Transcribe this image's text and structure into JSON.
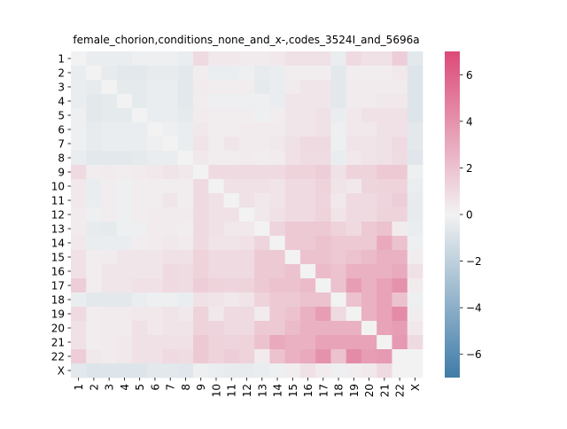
{
  "chart_data": {
    "type": "heatmap",
    "title": "female_chorion,conditions_none_and_x-,codes_3524I_and_5696a",
    "xlabel": "",
    "ylabel": "",
    "row_labels": [
      "1",
      "2",
      "3",
      "4",
      "5",
      "6",
      "7",
      "8",
      "9",
      "10",
      "11",
      "12",
      "13",
      "14",
      "15",
      "16",
      "17",
      "18",
      "19",
      "20",
      "21",
      "22",
      "X"
    ],
    "col_labels": [
      "1",
      "2",
      "3",
      "4",
      "5",
      "6",
      "7",
      "8",
      "9",
      "10",
      "11",
      "12",
      "13",
      "14",
      "15",
      "16",
      "17",
      "18",
      "19",
      "20",
      "21",
      "22",
      "X"
    ],
    "colorbar": {
      "min": -7,
      "max": 7,
      "ticks": [
        -6,
        -4,
        -2,
        0,
        2,
        4,
        6
      ],
      "tick_labels": [
        "−6",
        "−4",
        "−2",
        "0",
        "2",
        "4",
        "6"
      ],
      "colors": {
        "negative": "#3f7ca8",
        "center": "#f2f2f2",
        "positive": "#dc4a78"
      }
    },
    "values": [
      [
        0,
        -0.3,
        -0.3,
        -0.3,
        -0.2,
        -0.2,
        -0.2,
        -0.3,
        1.0,
        0.4,
        0.4,
        0.3,
        0.3,
        0.4,
        0.7,
        0.7,
        0.7,
        -0.3,
        1.0,
        0.7,
        0.7,
        1.5,
        -0.6
      ],
      [
        -0.3,
        0,
        -0.4,
        -0.6,
        -0.6,
        -0.4,
        -0.4,
        -0.6,
        0.2,
        -0.3,
        -0.3,
        -0.2,
        -0.4,
        -0.3,
        0.2,
        0.2,
        0.2,
        -0.6,
        0.2,
        0.2,
        0.2,
        0.4,
        -0.8
      ],
      [
        -0.3,
        -0.4,
        0,
        -0.5,
        -0.5,
        -0.3,
        -0.3,
        -0.6,
        0.3,
        0.2,
        0.2,
        0.2,
        -0.5,
        -0.3,
        0.3,
        0.5,
        0.5,
        -0.6,
        0.3,
        0.3,
        0.3,
        0.3,
        -0.8
      ],
      [
        -0.3,
        -0.6,
        -0.5,
        0,
        -0.5,
        -0.3,
        -0.3,
        -0.6,
        0.2,
        -0.2,
        -0.2,
        -0.2,
        -0.2,
        -0.3,
        0.5,
        0.5,
        0.5,
        -0.6,
        0.3,
        0.3,
        0.4,
        0.4,
        -0.8
      ],
      [
        -0.2,
        -0.6,
        -0.5,
        -0.5,
        0,
        -0.3,
        -0.3,
        -0.5,
        0.3,
        0.2,
        0.2,
        0.2,
        -0.2,
        0.2,
        0.5,
        0.5,
        0.7,
        -0.3,
        0.4,
        0.7,
        0.7,
        0.7,
        -0.8
      ],
      [
        -0.2,
        -0.4,
        -0.3,
        -0.3,
        -0.3,
        0,
        -0.2,
        -0.3,
        0.4,
        0.2,
        0.2,
        0.3,
        0.3,
        0.3,
        0.5,
        0.5,
        0.7,
        -0.2,
        0.4,
        0.4,
        0.7,
        0.7,
        -0.6
      ],
      [
        -0.2,
        -0.4,
        -0.3,
        -0.3,
        -0.3,
        -0.2,
        0,
        -0.3,
        0.6,
        0.2,
        0.5,
        0.3,
        0.3,
        0.4,
        0.7,
        1.0,
        1.0,
        -0.2,
        0.6,
        0.6,
        0.7,
        1.0,
        -0.6
      ],
      [
        -0.3,
        -0.6,
        -0.6,
        -0.6,
        -0.5,
        -0.3,
        -0.3,
        0,
        0.4,
        0.2,
        0.2,
        0.3,
        0.2,
        0.3,
        0.7,
        0.9,
        0.9,
        -0.3,
        0.4,
        0.6,
        0.7,
        0.9,
        -0.7
      ],
      [
        1.0,
        0.2,
        0.3,
        0.2,
        0.3,
        0.4,
        0.6,
        0.4,
        0,
        1.0,
        1.0,
        1.0,
        1.0,
        1.0,
        1.3,
        1.3,
        1.5,
        0.7,
        1.3,
        1.3,
        1.7,
        1.7,
        -0.2
      ],
      [
        0.4,
        -0.3,
        0.2,
        -0.2,
        0.2,
        0.2,
        0.2,
        0.2,
        1.0,
        0,
        0.7,
        0.7,
        0.7,
        0.6,
        1.0,
        1.0,
        1.3,
        0.6,
        0.4,
        1.2,
        1.3,
        1.3,
        -0.3
      ],
      [
        0.4,
        -0.3,
        0.2,
        -0.2,
        0.2,
        0.2,
        0.5,
        0.2,
        1.0,
        0.7,
        0,
        0.7,
        0.4,
        0.6,
        1.0,
        1.0,
        1.2,
        0.4,
        1.0,
        1.0,
        1.2,
        1.5,
        -0.4
      ],
      [
        0.3,
        -0.2,
        0.2,
        -0.2,
        0.2,
        0.3,
        0.3,
        0.3,
        1.0,
        0.7,
        0.7,
        0,
        0.4,
        0.7,
        1.0,
        1.0,
        1.3,
        0.6,
        1.0,
        1.0,
        1.3,
        1.3,
        -0.4
      ],
      [
        0.3,
        -0.4,
        -0.5,
        -0.2,
        -0.2,
        0.3,
        0.3,
        0.2,
        1.0,
        0.7,
        0.4,
        0.4,
        0,
        1.2,
        1.7,
        1.7,
        1.7,
        1.3,
        1.0,
        1.7,
        2.0,
        0.3,
        -0.3
      ],
      [
        0.4,
        -0.3,
        -0.3,
        -0.3,
        0.2,
        0.3,
        0.4,
        0.3,
        1.0,
        0.6,
        0.6,
        0.7,
        1.2,
        0,
        1.7,
        1.7,
        2.0,
        1.7,
        1.7,
        1.7,
        3.0,
        2.0,
        -0.2
      ],
      [
        0.7,
        0.2,
        0.3,
        0.5,
        0.5,
        0.5,
        0.7,
        0.7,
        1.3,
        1.0,
        1.0,
        1.0,
        1.7,
        1.7,
        0,
        2.0,
        2.0,
        1.7,
        2.0,
        2.3,
        2.7,
        2.7,
        0.2
      ],
      [
        0.7,
        0.2,
        0.5,
        0.5,
        0.5,
        0.5,
        1.0,
        0.9,
        1.3,
        1.0,
        1.0,
        1.0,
        1.7,
        1.7,
        2.0,
        0,
        2.3,
        2.0,
        2.7,
        2.7,
        2.7,
        3.0,
        0.7
      ],
      [
        1.5,
        0.2,
        0.5,
        0.5,
        0.7,
        0.7,
        1.0,
        0.9,
        1.5,
        1.3,
        1.2,
        1.3,
        1.7,
        2.0,
        2.0,
        2.3,
        0,
        2.0,
        3.5,
        2.7,
        3.3,
        4.0,
        0.3
      ],
      [
        -0.3,
        -0.6,
        -0.6,
        -0.6,
        -0.3,
        -0.2,
        -0.2,
        -0.3,
        0.7,
        0.6,
        0.4,
        0.6,
        1.3,
        1.7,
        1.7,
        2.0,
        2.0,
        0,
        2.0,
        2.7,
        3.3,
        2.0,
        -0.2
      ],
      [
        1.0,
        0.2,
        0.3,
        0.3,
        0.4,
        0.4,
        0.6,
        0.4,
        1.3,
        0.4,
        1.0,
        1.0,
        0.3,
        1.7,
        2.0,
        2.7,
        3.5,
        1.0,
        0,
        2.7,
        3.3,
        4.3,
        0.2
      ],
      [
        0.7,
        0.2,
        0.3,
        0.3,
        0.7,
        0.4,
        0.6,
        0.6,
        1.3,
        1.2,
        1.0,
        1.0,
        1.7,
        1.7,
        2.3,
        2.7,
        2.7,
        2.7,
        2.7,
        0,
        3.3,
        3.5,
        0.4
      ],
      [
        0.7,
        0.2,
        0.3,
        0.4,
        0.7,
        0.7,
        0.7,
        0.7,
        1.7,
        1.3,
        1.2,
        1.3,
        2.0,
        3.0,
        2.7,
        2.7,
        3.3,
        3.3,
        3.3,
        3.3,
        0,
        3.7,
        1.0
      ],
      [
        1.5,
        0.4,
        0.3,
        0.4,
        0.7,
        0.7,
        1.0,
        0.9,
        1.7,
        1.3,
        1.5,
        1.3,
        0.3,
        2.0,
        2.7,
        3.0,
        4.0,
        2.0,
        4.3,
        3.5,
        3.7,
        0,
        0.0
      ],
      [
        -0.6,
        -0.8,
        -0.8,
        -0.8,
        -0.8,
        -0.6,
        -0.6,
        -0.7,
        -0.2,
        -0.3,
        -0.4,
        -0.4,
        -0.3,
        -0.2,
        0.2,
        0.7,
        0.3,
        -0.2,
        0.2,
        0.4,
        1.0,
        0.0,
        0
      ]
    ]
  }
}
